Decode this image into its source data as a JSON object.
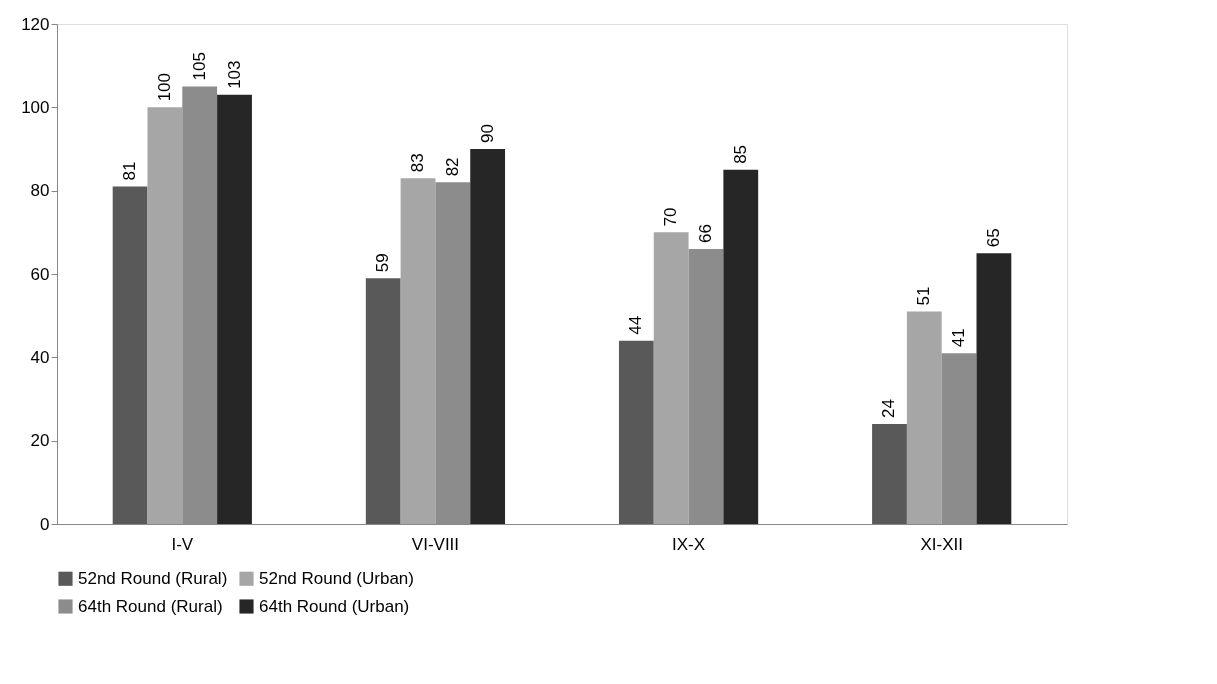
{
  "chart_data": {
    "type": "bar",
    "categories": [
      "I-V",
      "VI-VIII",
      "IX-X",
      "XI-XII"
    ],
    "series": [
      {
        "name": "52nd Round (Rural)",
        "color": "#595959",
        "values": [
          81,
          59,
          44,
          24
        ]
      },
      {
        "name": "52nd Round (Urban)",
        "color": "#a6a6a6",
        "values": [
          100,
          83,
          70,
          51
        ]
      },
      {
        "name": "64th Round (Rural)",
        "color": "#8c8c8c",
        "values": [
          105,
          82,
          66,
          41
        ]
      },
      {
        "name": "64th Round (Urban)",
        "color": "#262626",
        "values": [
          103,
          90,
          85,
          65
        ]
      }
    ],
    "ylim": [
      0,
      120
    ],
    "yticks": [
      0,
      20,
      40,
      60,
      80,
      100,
      120
    ],
    "grid": false,
    "legend": "bottom",
    "data_labels": true
  }
}
